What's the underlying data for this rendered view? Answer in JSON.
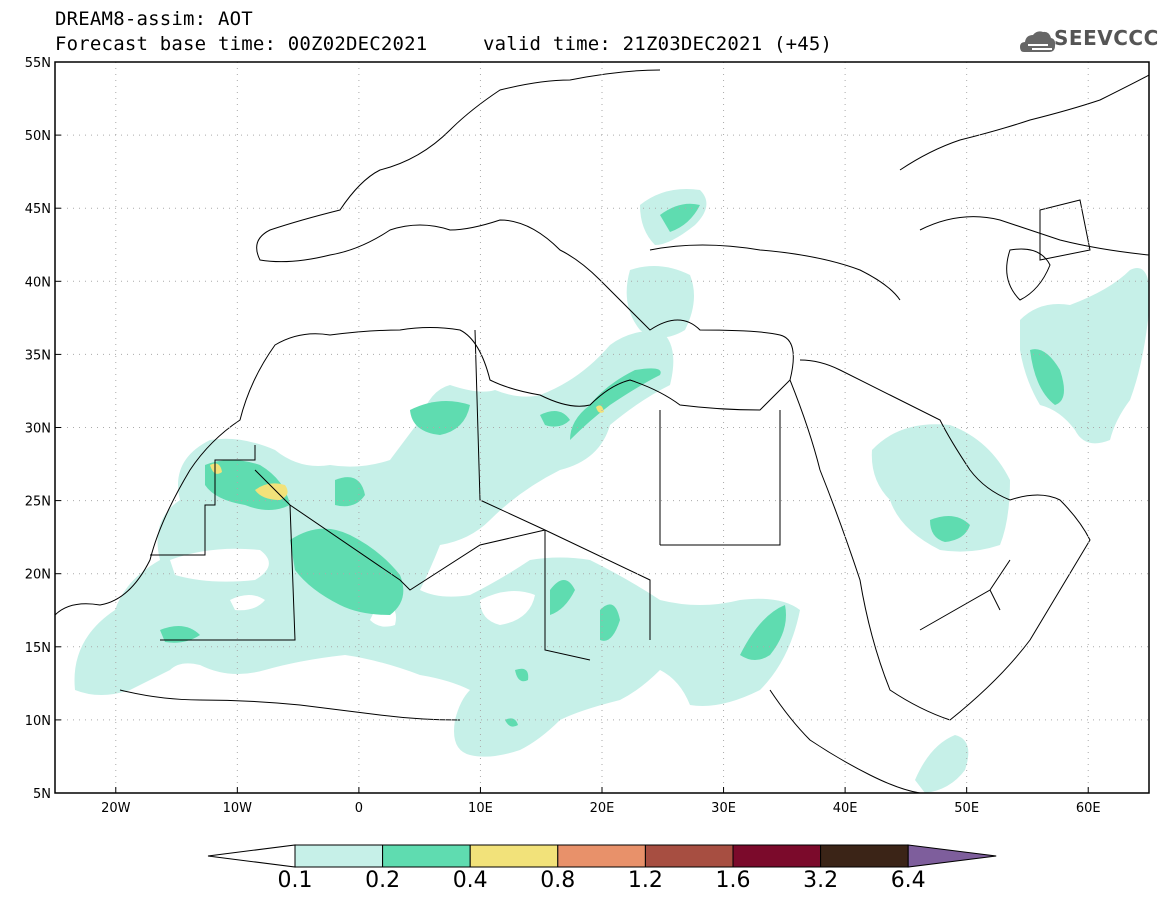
{
  "header": {
    "line1": "DREAM8-assim: AOT",
    "line2": "Forecast base time: 00Z02DEC2021",
    "line3": "valid time: 21Z03DEC2021 (+45)",
    "logo_text": "SEEVCCC"
  },
  "map": {
    "lat_labels": [
      "55N",
      "50N",
      "45N",
      "40N",
      "35N",
      "30N",
      "25N",
      "20N",
      "15N",
      "10N",
      "5N"
    ],
    "lon_labels": [
      "20W",
      "10W",
      "0",
      "10E",
      "20E",
      "30E",
      "40E",
      "50E",
      "60E"
    ],
    "gridlines": "dotted",
    "variable": "AOT"
  },
  "legend": {
    "labels": [
      "0.1",
      "0.2",
      "0.4",
      "0.8",
      "1.2",
      "1.6",
      "3.2",
      "6.4"
    ],
    "colors": [
      "#ffffff",
      "#c6f0e8",
      "#5fdcb0",
      "#f2e27a",
      "#e8916a",
      "#a74e41",
      "#7b0a2b",
      "#3b2417",
      "#7e5e9c"
    ]
  },
  "colors": {
    "light": "#c6f0e8",
    "mid": "#5fdcb0",
    "high": "#f2e27a"
  }
}
